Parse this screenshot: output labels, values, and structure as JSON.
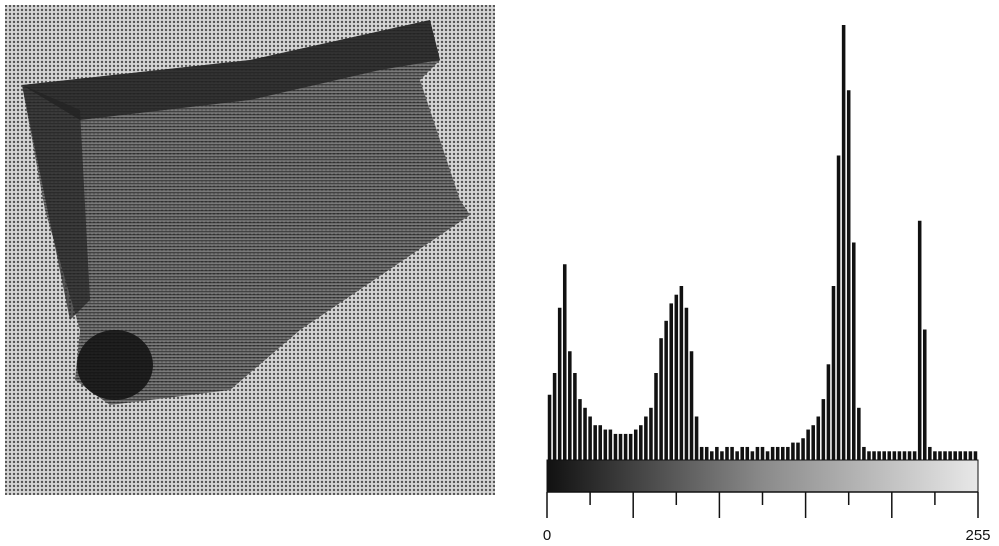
{
  "chart_data": {
    "type": "histogram",
    "bins": [
      0,
      3,
      6,
      9,
      12,
      15,
      18,
      21,
      24,
      27,
      30,
      33,
      36,
      39,
      42,
      45,
      48,
      51,
      54,
      57,
      60,
      63,
      66,
      69,
      72,
      75,
      78,
      81,
      84,
      87,
      90,
      93,
      96,
      99,
      102,
      105,
      108,
      111,
      114,
      117,
      120,
      123,
      126,
      129,
      132,
      135,
      138,
      141,
      144,
      147,
      150,
      153,
      156,
      159,
      162,
      165,
      168,
      171,
      174,
      177,
      180,
      183,
      186,
      189,
      192,
      195,
      198,
      201,
      204,
      207,
      210,
      213,
      216,
      219,
      222,
      225,
      228,
      231,
      234,
      237,
      240,
      243,
      246,
      249,
      252,
      255
    ],
    "values": [
      15,
      20,
      35,
      45,
      25,
      20,
      14,
      12,
      10,
      8,
      8,
      7,
      7,
      6,
      6,
      6,
      6,
      7,
      8,
      10,
      12,
      20,
      28,
      32,
      36,
      38,
      40,
      35,
      25,
      10,
      3,
      3,
      2,
      3,
      2,
      3,
      3,
      2,
      3,
      3,
      2,
      3,
      3,
      2,
      3,
      3,
      3,
      3,
      4,
      4,
      5,
      7,
      8,
      10,
      14,
      22,
      40,
      70,
      100,
      85,
      50,
      12,
      3,
      2,
      2,
      2,
      2,
      2,
      2,
      2,
      2,
      2,
      2,
      55,
      30,
      3,
      2,
      2,
      2,
      2,
      2,
      2,
      2,
      2,
      2
    ],
    "color": "#111111",
    "xlim": [
      0,
      255
    ],
    "ylim": [
      0,
      100
    ],
    "xticks": [
      0,
      255
    ],
    "minor_xticks": [
      25.5,
      51,
      76.5,
      102,
      127.5,
      153,
      178.5,
      204,
      229.5
    ]
  }
}
